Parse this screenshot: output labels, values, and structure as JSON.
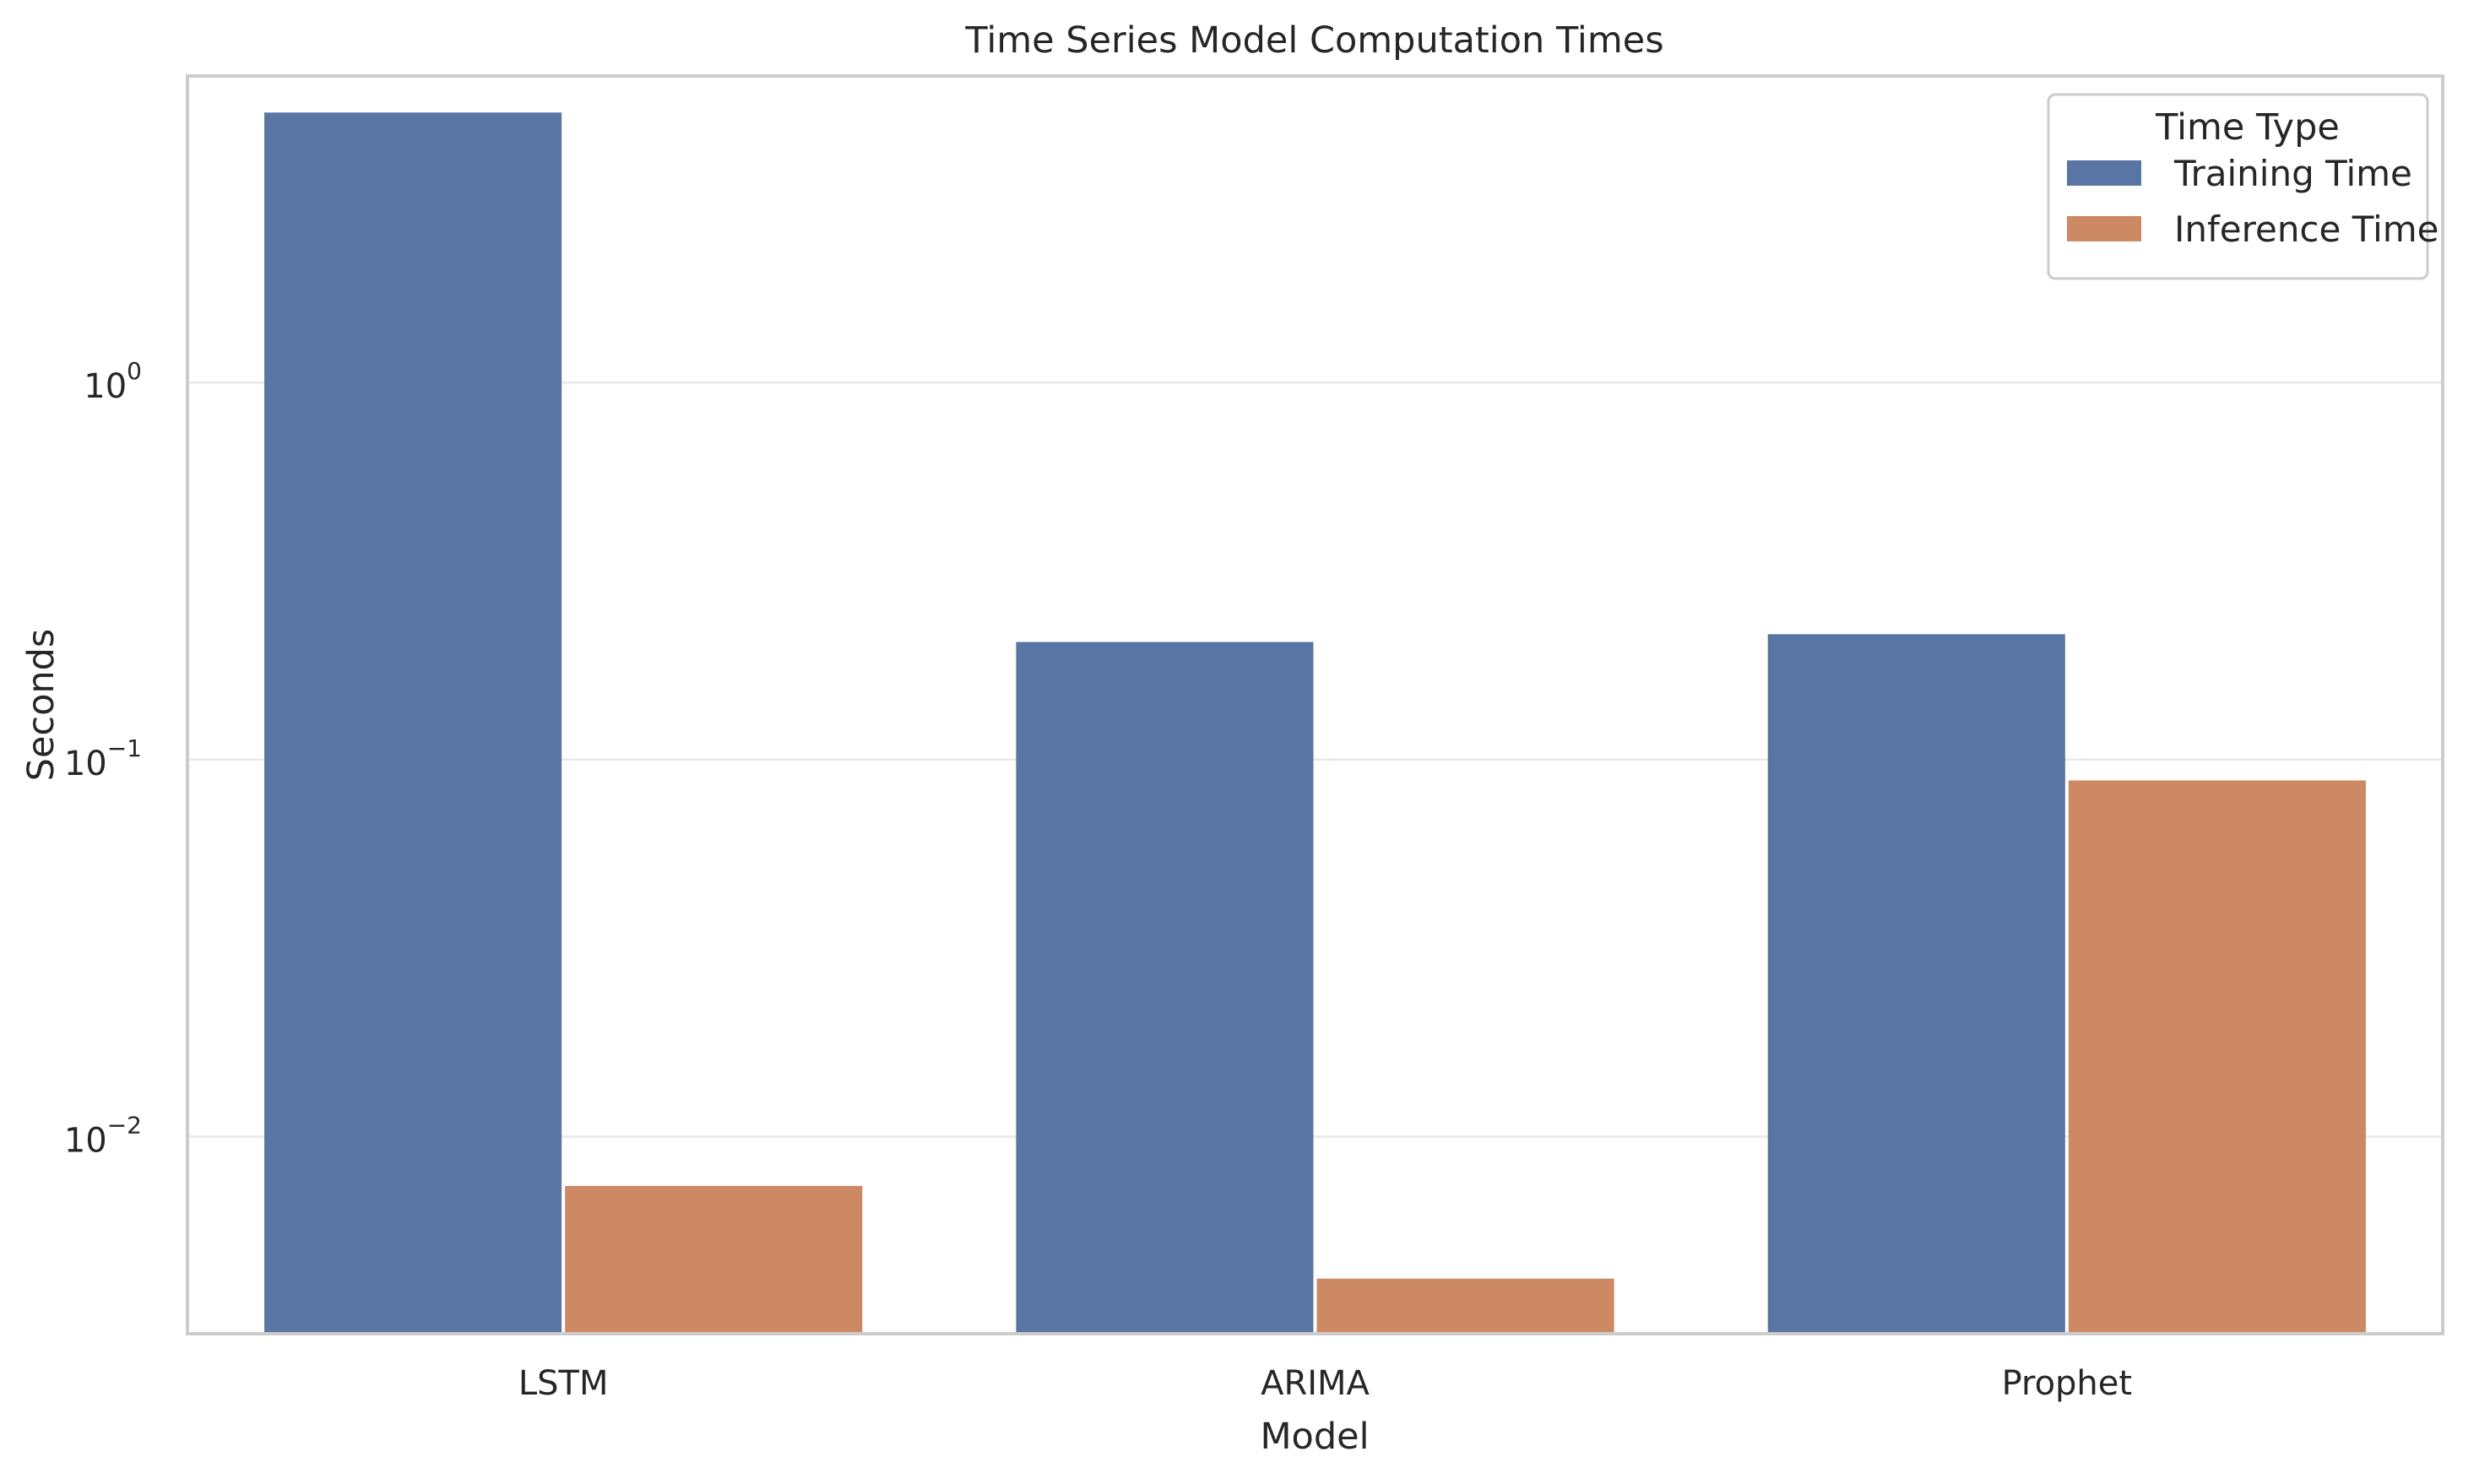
{
  "chart_data": {
    "type": "bar",
    "title": "Time Series Model Computation Times",
    "xlabel": "Model",
    "ylabel": "Seconds",
    "yscale": "log",
    "ylim": [
      0.003,
      6.5
    ],
    "yticks": [
      {
        "value": 1,
        "base": "10",
        "exp": "0"
      },
      {
        "value": 0.1,
        "base": "10",
        "exp": "−1"
      },
      {
        "value": 0.01,
        "base": "10",
        "exp": "−2"
      }
    ],
    "categories": [
      "LSTM",
      "ARIMA",
      "Prophet"
    ],
    "series": [
      {
        "name": "Training Time",
        "color": "#5975a4",
        "values": [
          5.2,
          0.205,
          0.215
        ]
      },
      {
        "name": "Inference Time",
        "color": "#cc8963",
        "values": [
          0.0074,
          0.0042,
          0.088
        ]
      }
    ],
    "legend": {
      "title": "Time Type",
      "position": "top-right"
    },
    "grid": "horizontal",
    "colors": {
      "frame": "#cccccc",
      "grid": "#ebebeb",
      "text": "#262626"
    }
  }
}
